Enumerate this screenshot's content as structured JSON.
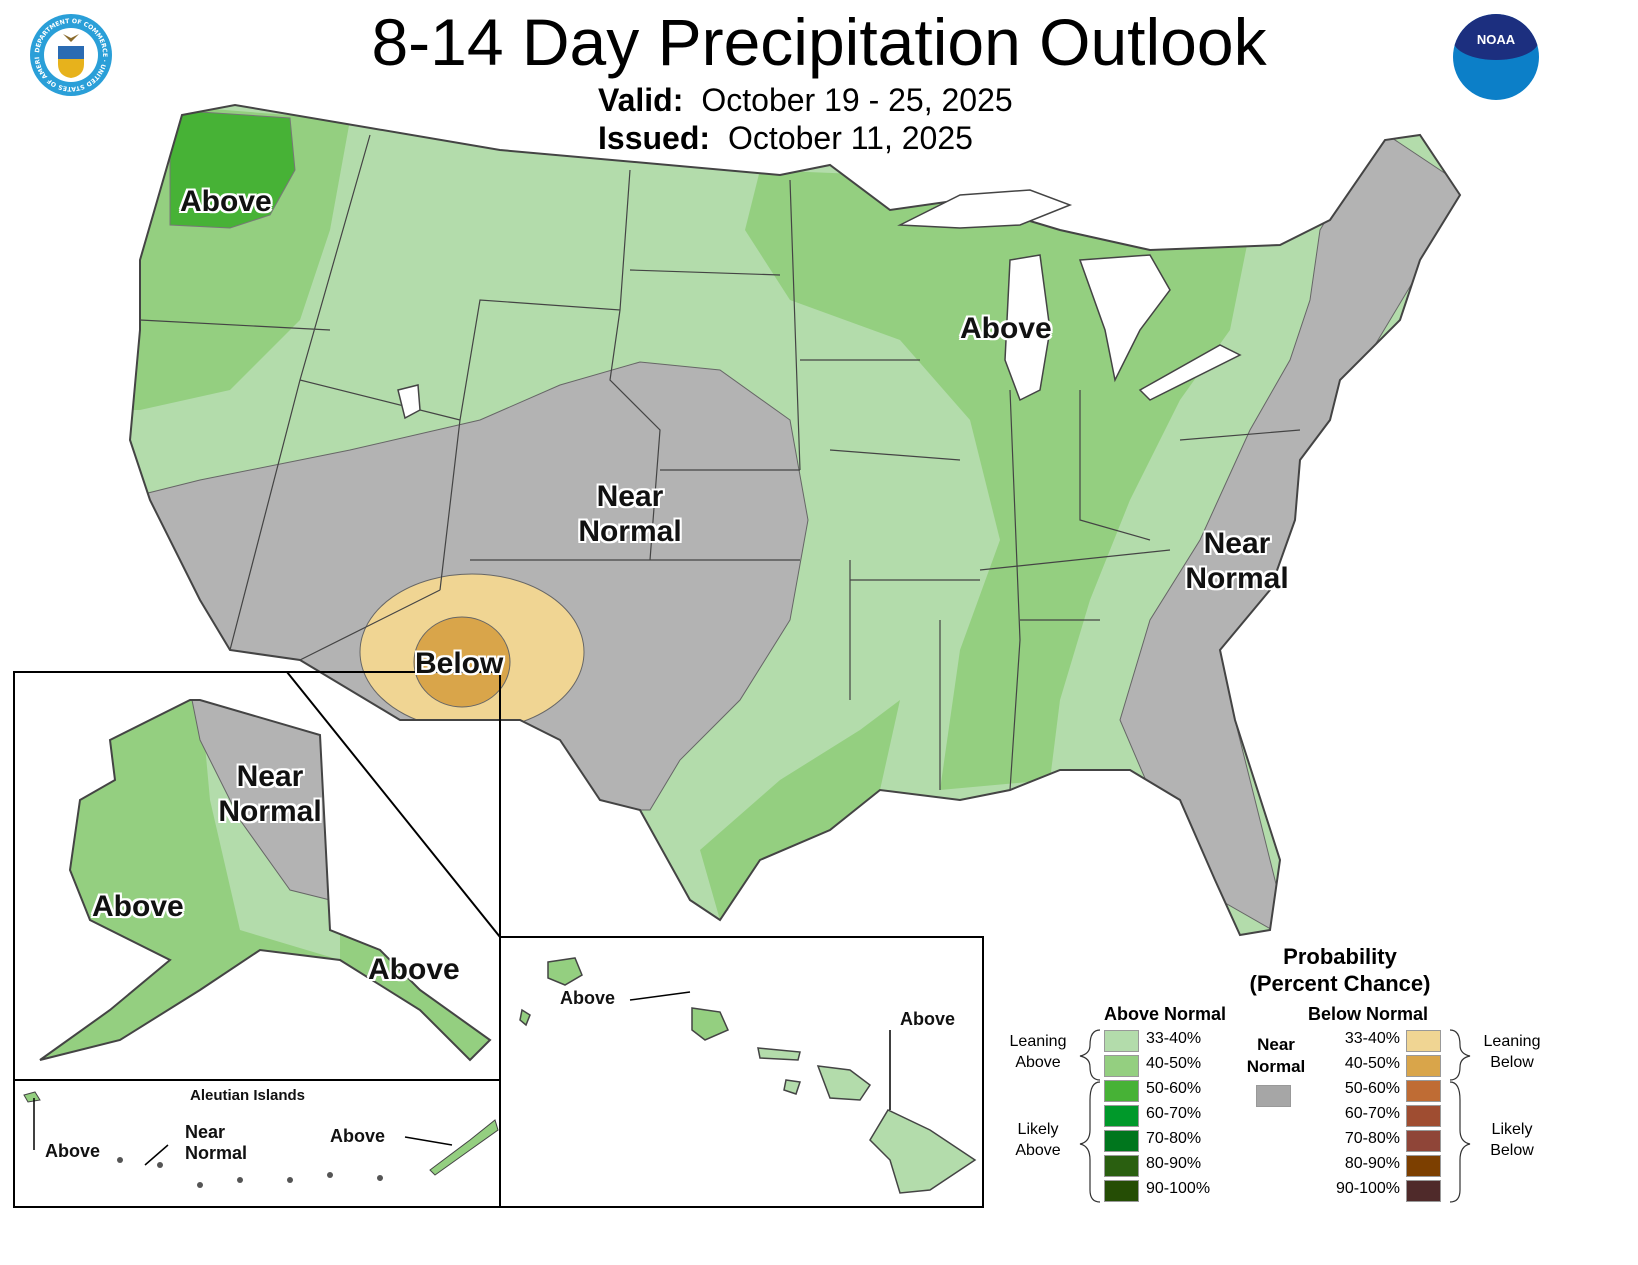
{
  "header": {
    "title": "8-14 Day Precipitation Outlook",
    "valid_label": "Valid:",
    "valid_value": "October 19 - 25, 2025",
    "issued_label": "Issued:",
    "issued_value": "October 11, 2025",
    "left_logo": "department-of-commerce-seal",
    "left_logo_text": "DEPARTMENT OF COMMERCE · UNITED STATES OF AMERICA",
    "right_logo": "noaa-logo",
    "right_logo_text": "NOAA"
  },
  "colors": {
    "leaning_above": "#b3dcab",
    "above_40_50": "#94cf80",
    "above_50_60": "#47b236",
    "near_normal": "#b3b3b3",
    "below_33_40": "#f0d593",
    "below_40_50": "#d9a54a"
  },
  "map_labels": {
    "pacific_nw": "Above",
    "great_lakes": "Above",
    "central_near1": "Near",
    "central_near2": "Normal",
    "east_near1": "Near",
    "east_near2": "Normal",
    "southwest": "Below",
    "alaska_near1": "Near",
    "alaska_near2": "Normal",
    "alaska_west": "Above",
    "alaska_se": "Above",
    "aleutian_title": "Aleutian Islands",
    "aleutian_west": "Above",
    "aleutian_near1": "Near",
    "aleutian_near2": "Normal",
    "aleutian_east": "Above",
    "hawaii_west": "Above",
    "hawaii_east": "Above"
  },
  "legend": {
    "title1": "Probability",
    "title2": "(Percent Chance)",
    "above_header": "Above Normal",
    "below_header": "Below Normal",
    "near_normal1": "Near",
    "near_normal2": "Normal",
    "near_normal_color": "#a6a6a6",
    "leaning_above1": "Leaning",
    "leaning_above2": "Above",
    "likely_above1": "Likely",
    "likely_above2": "Above",
    "leaning_below1": "Leaning",
    "leaning_below2": "Below",
    "likely_below1": "Likely",
    "likely_below2": "Below",
    "above": [
      {
        "range": "33-40%",
        "color": "#b3dcab"
      },
      {
        "range": "40-50%",
        "color": "#94cf80"
      },
      {
        "range": "50-60%",
        "color": "#47b236"
      },
      {
        "range": "60-70%",
        "color": "#00992a"
      },
      {
        "range": "70-80%",
        "color": "#00761d"
      },
      {
        "range": "80-90%",
        "color": "#2a5f10"
      },
      {
        "range": "90-100%",
        "color": "#254d05"
      }
    ],
    "below": [
      {
        "range": "33-40%",
        "color": "#f0d593"
      },
      {
        "range": "40-50%",
        "color": "#d9a54a"
      },
      {
        "range": "50-60%",
        "color": "#bf6c34"
      },
      {
        "range": "60-70%",
        "color": "#9f4d31"
      },
      {
        "range": "70-80%",
        "color": "#8f4538"
      },
      {
        "range": "80-90%",
        "color": "#7c3f00"
      },
      {
        "range": "90-100%",
        "color": "#4f2a2a"
      }
    ]
  }
}
